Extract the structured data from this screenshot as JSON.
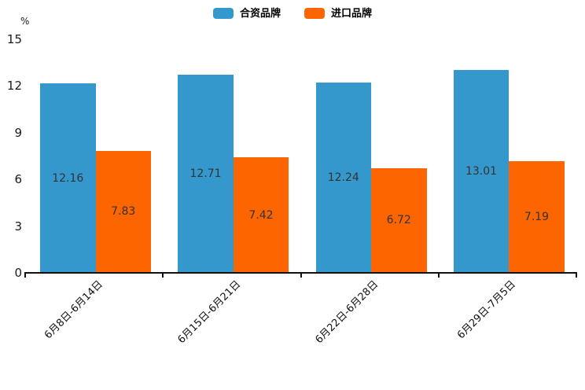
{
  "chart_data": {
    "type": "bar",
    "title": "",
    "xlabel": "",
    "ylabel": "%",
    "categories": [
      "6月8日-6月14日",
      "6月15日-6月21日",
      "6月22日-6月28日",
      "6月29日-7月5日"
    ],
    "series": [
      {
        "name": "合资品牌",
        "color": "#3498cc",
        "values": [
          12.16,
          12.71,
          12.24,
          13.01
        ]
      },
      {
        "name": "进口品牌",
        "color": "#fd6500",
        "values": [
          7.83,
          7.42,
          6.72,
          7.19
        ]
      }
    ],
    "ylim": [
      0,
      15
    ],
    "yticks": [
      0,
      3,
      6,
      9,
      12,
      15
    ],
    "grid": false,
    "legend_position": "top-center",
    "bar_value_labels": "inside-center, 2 decimals",
    "x_label_rotation_deg": 45,
    "value_label_color": "#333333",
    "axis_color": "#111111",
    "background_color": "#ffffff"
  }
}
